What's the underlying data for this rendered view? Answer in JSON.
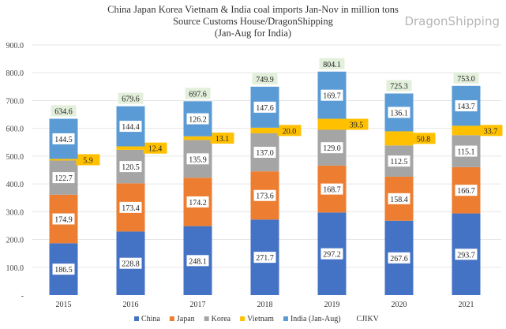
{
  "chart_data": {
    "type": "bar",
    "stacked": true,
    "title": "China Japan Korea Vietnam & India coal imports Jan-Nov in million tons",
    "subtitle": [
      "Source Customs House/DragonShipping",
      "(Jan-Aug for India)"
    ],
    "xlabel": "",
    "ylabel": "",
    "ylim": [
      0,
      900
    ],
    "yticks": [
      "-",
      "100.0",
      "200.0",
      "300.0",
      "400.0",
      "500.0",
      "600.0",
      "700.0",
      "800.0",
      "900.0"
    ],
    "grid": true,
    "legend": "bottom",
    "categories": [
      "2015",
      "2016",
      "2017",
      "2018",
      "2019",
      "2020",
      "2021"
    ],
    "series": [
      {
        "name": "China",
        "color": "#4472C4",
        "values": [
          186.5,
          228.8,
          248.1,
          271.7,
          297.2,
          267.6,
          293.7
        ]
      },
      {
        "name": "Japan",
        "color": "#ED7D31",
        "values": [
          174.9,
          173.4,
          174.2,
          173.6,
          168.7,
          158.4,
          166.7
        ]
      },
      {
        "name": "Korea",
        "color": "#A5A5A5",
        "values": [
          122.7,
          120.5,
          135.9,
          137.0,
          129.0,
          112.5,
          115.1
        ]
      },
      {
        "name": "Vietnam",
        "color": "#FFC000",
        "values": [
          5.9,
          12.4,
          13.1,
          20.0,
          39.5,
          50.8,
          33.7
        ]
      },
      {
        "name": "India (Jan-Aug)",
        "color": "#5B9BD5",
        "values": [
          144.5,
          144.4,
          126.2,
          147.6,
          169.7,
          136.1,
          143.7
        ]
      }
    ],
    "totals": {
      "name": "CJIKV",
      "color": "#E2EFDA",
      "values": [
        634.6,
        679.6,
        697.6,
        749.9,
        804.1,
        725.3,
        753.0
      ]
    }
  },
  "watermark": "DragonShipping"
}
